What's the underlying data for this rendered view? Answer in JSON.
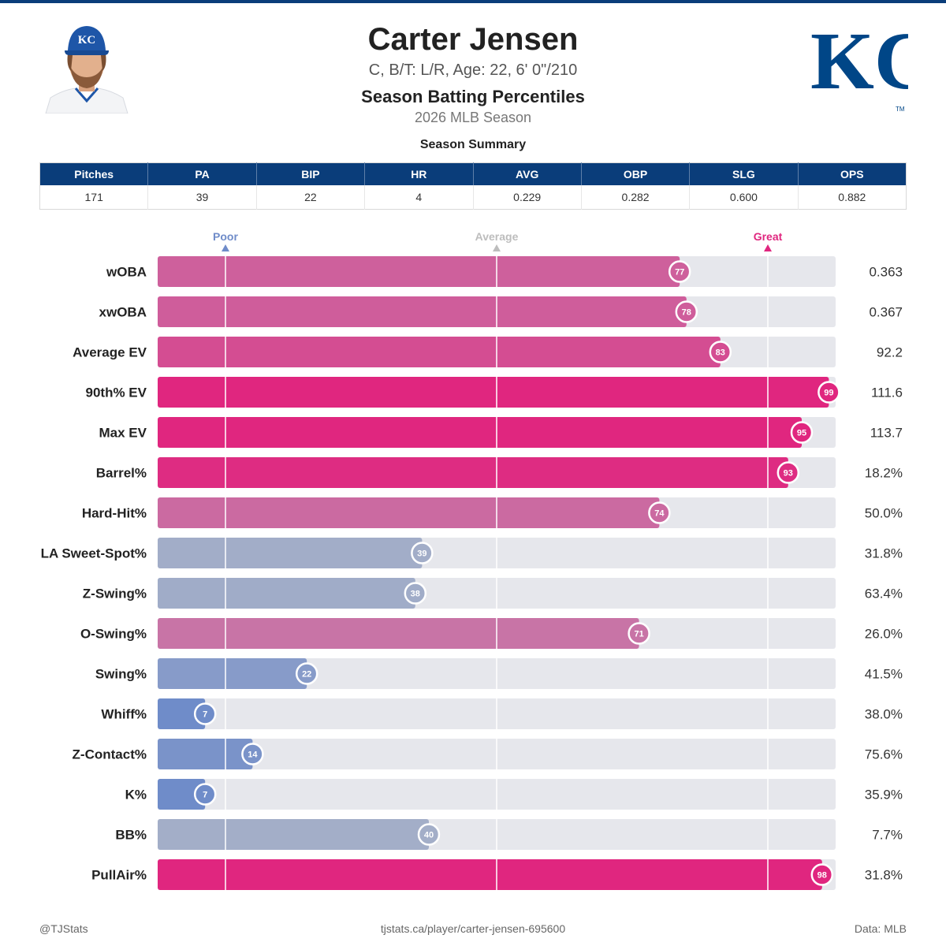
{
  "player": {
    "name": "Carter Jensen",
    "bio": "C, B/T: L/R, Age: 22, 6' 0\"/210",
    "subtitle": "Season Batting Percentiles",
    "season": "2026 MLB Season",
    "cap_logo_text": "KC"
  },
  "team_logo": {
    "text": "KC",
    "trademark": "TM",
    "color": "#004687"
  },
  "summary": {
    "title": "Season Summary",
    "headers": [
      "Pitches",
      "PA",
      "BIP",
      "HR",
      "AVG",
      "OBP",
      "SLG",
      "OPS"
    ],
    "values": [
      "171",
      "39",
      "22",
      "4",
      "0.229",
      "0.282",
      "0.600",
      "0.882"
    ]
  },
  "colors": {
    "header_blue": "#0a3d7a",
    "great_pink": "#e0267f",
    "poor_blue": "#6f8cc9",
    "average_gray": "#b3b8c8",
    "track": "#e6e7ec"
  },
  "chart_data": {
    "type": "bar",
    "orientation": "horizontal",
    "x_range": [
      0,
      100
    ],
    "scale_markers": [
      {
        "label": "Poor",
        "value": 10,
        "color": "#6f8cc9"
      },
      {
        "label": "Average",
        "value": 50,
        "color": "#bdbdbd"
      },
      {
        "label": "Great",
        "value": 90,
        "color": "#e0267f"
      }
    ],
    "categories": [
      "wOBA",
      "xwOBA",
      "Average EV",
      "90th% EV",
      "Max EV",
      "Barrel%",
      "Hard-Hit%",
      "LA Sweet-Spot%",
      "Z-Swing%",
      "O-Swing%",
      "Swing%",
      "Whiff%",
      "Z-Contact%",
      "K%",
      "BB%",
      "PullAir%"
    ],
    "percentiles": [
      77,
      78,
      83,
      99,
      95,
      93,
      74,
      39,
      38,
      71,
      22,
      7,
      14,
      7,
      40,
      98
    ],
    "values": [
      "0.363",
      "0.367",
      "92.2",
      "111.6",
      "113.7",
      "18.2%",
      "50.0%",
      "31.8%",
      "63.4%",
      "26.0%",
      "41.5%",
      "38.0%",
      "75.6%",
      "35.9%",
      "7.7%",
      "31.8%"
    ]
  },
  "footer": {
    "left": "@TJStats",
    "center": "tjstats.ca/player/carter-jensen-695600",
    "right": "Data: MLB"
  }
}
